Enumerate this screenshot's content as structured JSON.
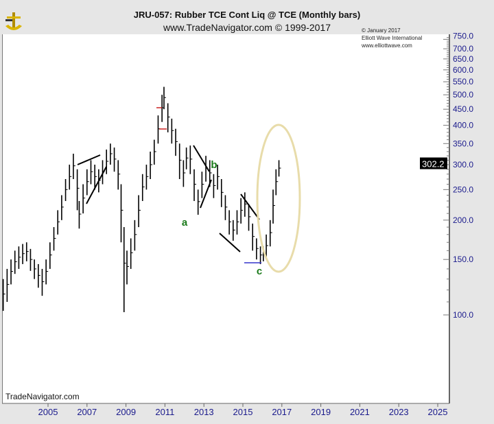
{
  "header": {
    "title": "JRU-057:  Rubber TCE Cont Liq @ TCE  (Monthly bars)",
    "subtitle": "www.TradeNavigator.com © 1999-2017"
  },
  "watermark": {
    "line1": "© January 2017",
    "line2": "Elliott Wave International",
    "line3": "www.elliottwave.com"
  },
  "footer_brand": "TradeNavigator.com",
  "chart_data": {
    "type": "bar",
    "subtype": "ohlc-monthly",
    "yscale": "log",
    "ylim": [
      95,
      780
    ],
    "xlim": [
      2002.6,
      2025.6
    ],
    "x_ticks": [
      "2005",
      "2007",
      "2009",
      "2011",
      "2013",
      "2015",
      "2017",
      "2019",
      "2021",
      "2023",
      "2025"
    ],
    "y_ticks": [
      "750.0",
      "700.0",
      "650.0",
      "600.0",
      "550.0",
      "500.0",
      "450.0",
      "400.0",
      "350.0",
      "300.0",
      "250.0",
      "200.0",
      "150.0",
      "100.0"
    ],
    "last_price": "302.2",
    "bars": [
      [
        2002.7,
        130,
        103
      ],
      [
        2002.9,
        140,
        110
      ],
      [
        2003.1,
        150,
        125
      ],
      [
        2003.3,
        160,
        135
      ],
      [
        2003.5,
        165,
        140
      ],
      [
        2003.7,
        168,
        145
      ],
      [
        2003.9,
        170,
        148
      ],
      [
        2004.1,
        162,
        138
      ],
      [
        2004.3,
        150,
        130
      ],
      [
        2004.5,
        145,
        122
      ],
      [
        2004.7,
        140,
        115
      ],
      [
        2004.9,
        150,
        125
      ],
      [
        2005.1,
        170,
        140
      ],
      [
        2005.3,
        190,
        160
      ],
      [
        2005.5,
        215,
        180
      ],
      [
        2005.7,
        240,
        200
      ],
      [
        2005.9,
        270,
        230
      ],
      [
        2006.1,
        300,
        250
      ],
      [
        2006.3,
        325,
        270
      ],
      [
        2006.5,
        290,
        215
      ],
      [
        2006.6,
        230,
        188
      ],
      [
        2006.8,
        260,
        210
      ],
      [
        2007.0,
        290,
        240
      ],
      [
        2007.2,
        310,
        260
      ],
      [
        2007.4,
        300,
        250
      ],
      [
        2007.6,
        290,
        245
      ],
      [
        2007.8,
        310,
        260
      ],
      [
        2008.0,
        335,
        280
      ],
      [
        2008.2,
        350,
        300
      ],
      [
        2008.4,
        340,
        285
      ],
      [
        2008.6,
        310,
        250
      ],
      [
        2008.75,
        260,
        170
      ],
      [
        2008.9,
        190,
        102
      ],
      [
        2009.05,
        160,
        125
      ],
      [
        2009.25,
        175,
        140
      ],
      [
        2009.45,
        200,
        160
      ],
      [
        2009.65,
        240,
        190
      ],
      [
        2009.85,
        280,
        230
      ],
      [
        2010.05,
        300,
        250
      ],
      [
        2010.25,
        330,
        270
      ],
      [
        2010.45,
        360,
        300
      ],
      [
        2010.65,
        430,
        350
      ],
      [
        2010.85,
        500,
        410
      ],
      [
        2010.95,
        530,
        450
      ],
      [
        2011.15,
        470,
        380
      ],
      [
        2011.35,
        420,
        350
      ],
      [
        2011.55,
        390,
        320
      ],
      [
        2011.75,
        350,
        270
      ],
      [
        2011.95,
        310,
        255
      ],
      [
        2012.1,
        340,
        290
      ],
      [
        2012.3,
        345,
        280
      ],
      [
        2012.5,
        290,
        230
      ],
      [
        2012.7,
        250,
        208
      ],
      [
        2012.9,
        285,
        235
      ],
      [
        2013.1,
        320,
        265
      ],
      [
        2013.3,
        310,
        255
      ],
      [
        2013.5,
        280,
        235
      ],
      [
        2013.7,
        300,
        250
      ],
      [
        2013.9,
        270,
        220
      ],
      [
        2014.1,
        240,
        200
      ],
      [
        2014.3,
        215,
        180
      ],
      [
        2014.5,
        200,
        172
      ],
      [
        2014.7,
        215,
        180
      ],
      [
        2014.9,
        235,
        195
      ],
      [
        2015.1,
        245,
        205
      ],
      [
        2015.3,
        225,
        185
      ],
      [
        2015.5,
        195,
        160
      ],
      [
        2015.7,
        175,
        150
      ],
      [
        2015.9,
        165,
        145
      ],
      [
        2016.05,
        165,
        148
      ],
      [
        2016.2,
        180,
        152
      ],
      [
        2016.4,
        200,
        165
      ],
      [
        2016.55,
        250,
        195
      ],
      [
        2016.7,
        290,
        240
      ],
      [
        2016.85,
        310,
        275
      ]
    ],
    "annotations": {
      "wave_labels": [
        "a",
        "b",
        "c"
      ]
    },
    "colors": {
      "bars": "#000000",
      "wave_label": "#1a7a1a",
      "ellipse": "#e8dcaa",
      "axis_text": "#1a1a8c",
      "support_line": "#3333cc",
      "marker": "#cc2222"
    }
  }
}
